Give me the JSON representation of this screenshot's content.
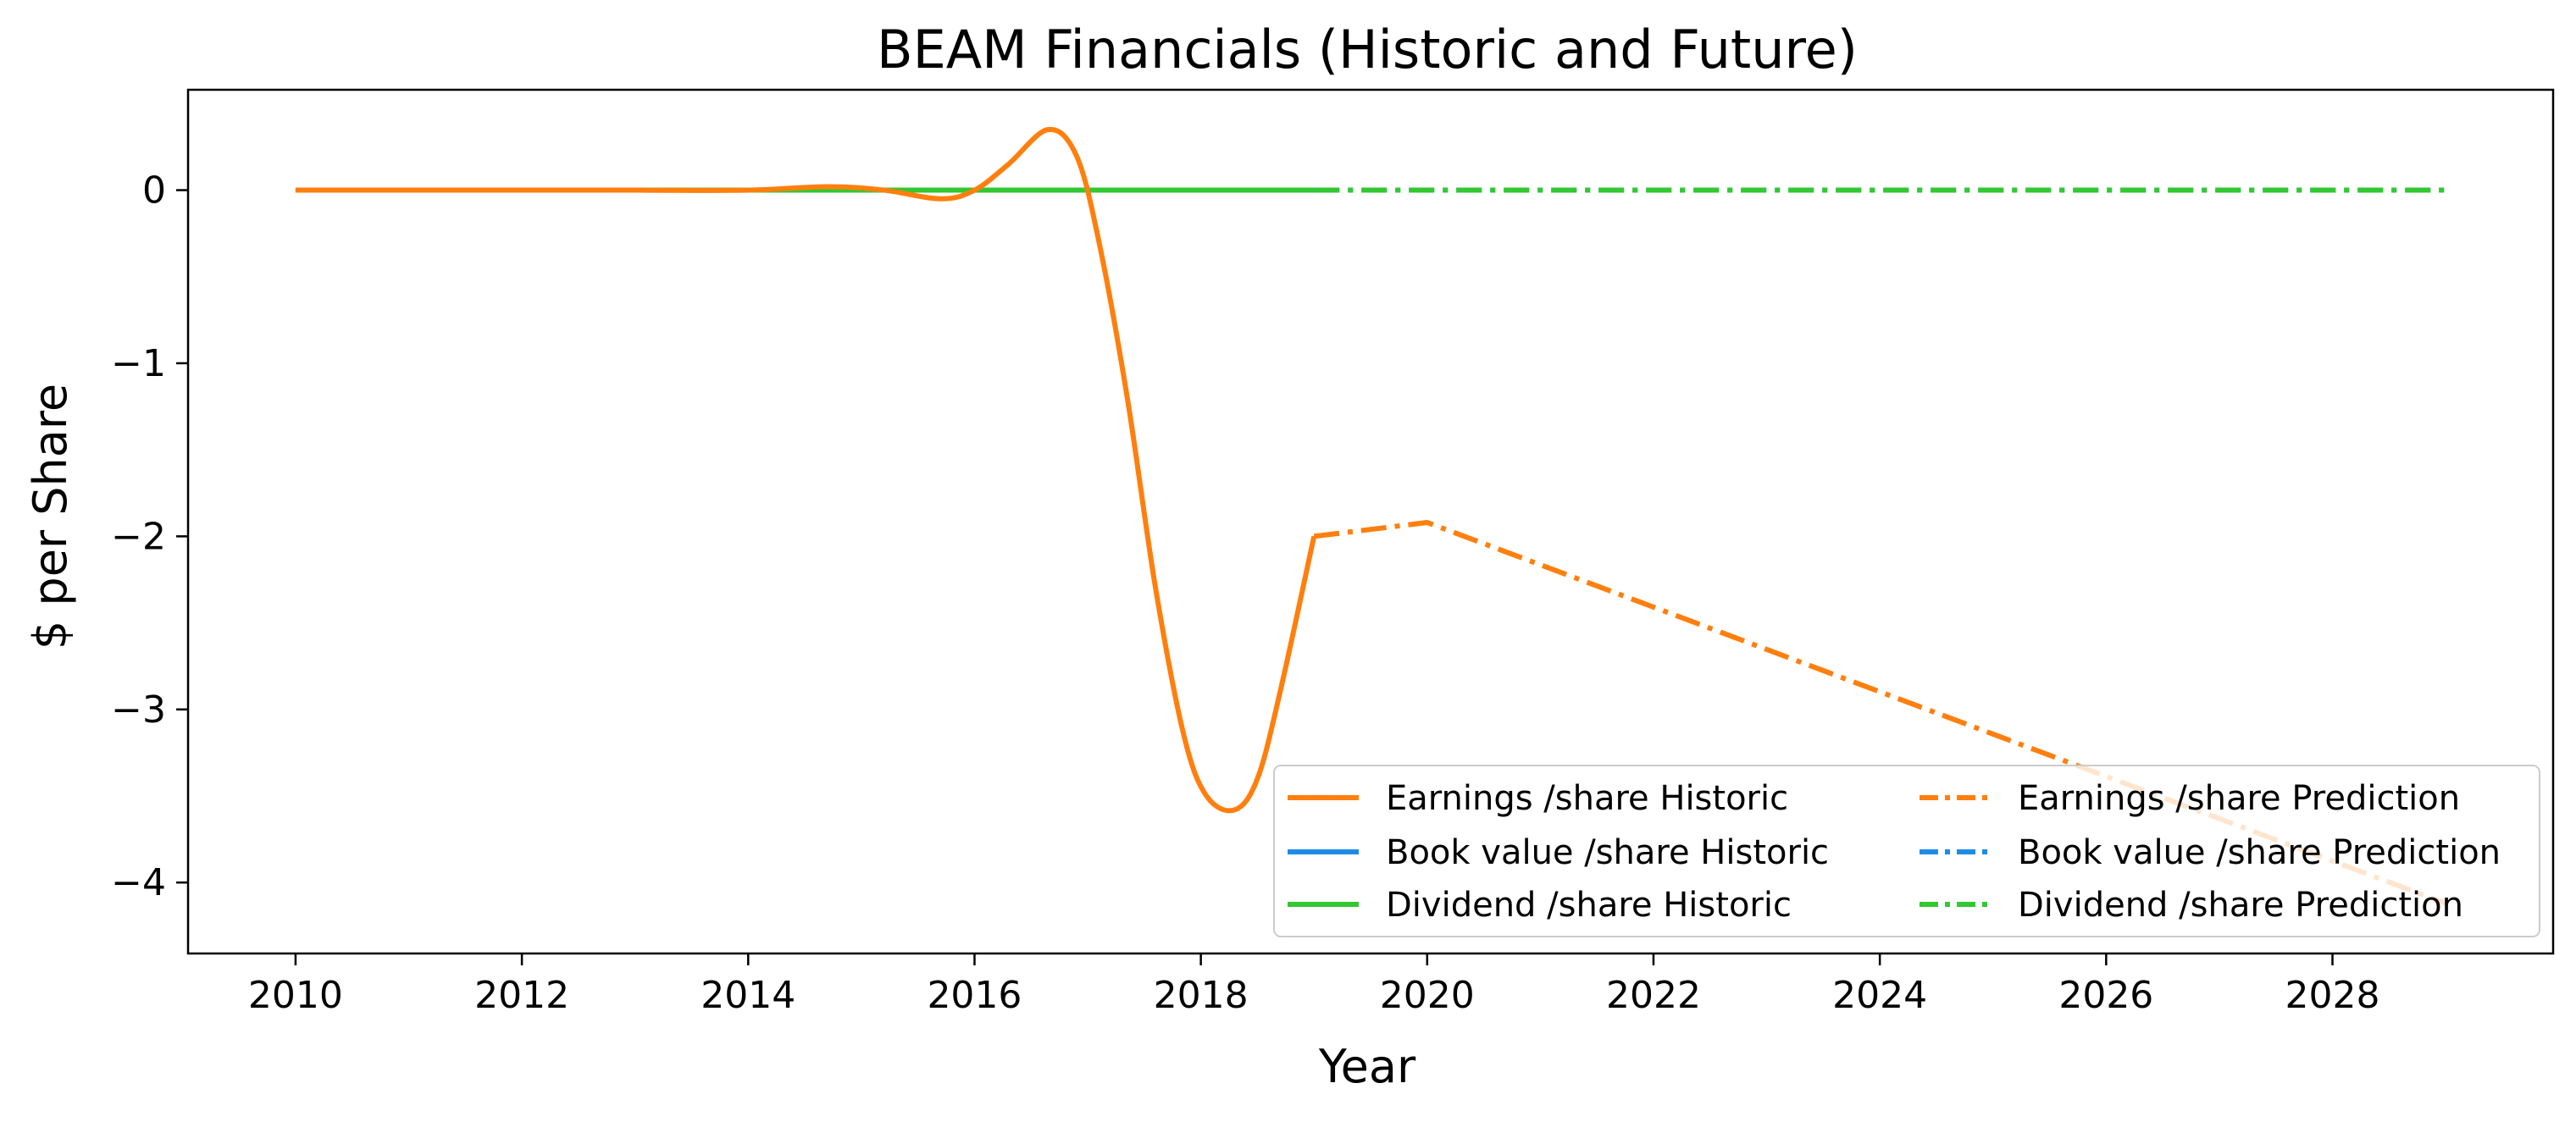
{
  "chart_data": {
    "type": "line",
    "title": "BEAM Financials (Historic and Future)",
    "xlabel": "Year",
    "ylabel": "$ per Share",
    "xlim": [
      2009.05,
      2029.95
    ],
    "ylim": [
      -4.41,
      0.58
    ],
    "x_ticks": [
      2010,
      2012,
      2014,
      2016,
      2018,
      2020,
      2022,
      2024,
      2026,
      2028
    ],
    "y_ticks": [
      0,
      -1,
      -2,
      -3,
      -4
    ],
    "x_tick_labels": [
      "2010",
      "2012",
      "2014",
      "2016",
      "2018",
      "2020",
      "2022",
      "2024",
      "2026",
      "2028"
    ],
    "y_tick_labels": [
      "0",
      "−1",
      "−2",
      "−3",
      "−4"
    ],
    "grid": false,
    "legend_position": "lower-right",
    "series": [
      {
        "name": "Earnings /share Historic",
        "color": "#ff7f0e",
        "style": "solid",
        "x": [
          2010,
          2011,
          2012,
          2013,
          2014,
          2014.7,
          2015.2,
          2015.7,
          2016.0,
          2016.3,
          2016.65,
          2016.9,
          2017.1,
          2017.35,
          2017.6,
          2017.85,
          2018.05,
          2018.3,
          2018.5,
          2018.7,
          2019.0
        ],
        "y": [
          0.0,
          0.0,
          0.0,
          0.0,
          0.0,
          0.02,
          0.0,
          -0.05,
          0.0,
          0.15,
          0.35,
          0.2,
          -0.3,
          -1.2,
          -2.3,
          -3.15,
          -3.5,
          -3.58,
          -3.4,
          -2.9,
          -2.0
        ]
      },
      {
        "name": "Book value /share Historic",
        "color": "#1e8ce6",
        "style": "solid",
        "x": [
          2010,
          2019
        ],
        "y": [
          0.0,
          0.0
        ]
      },
      {
        "name": "Dividend /share Historic",
        "color": "#32c832",
        "style": "solid",
        "x": [
          2010,
          2019
        ],
        "y": [
          0.0,
          0.0
        ]
      },
      {
        "name": "Earnings /share Prediction",
        "color": "#ff7f0e",
        "style": "dashdot",
        "x": [
          2019,
          2020,
          2029
        ],
        "y": [
          -2.0,
          -1.92,
          -4.12
        ]
      },
      {
        "name": "Book value /share Prediction",
        "color": "#1e8ce6",
        "style": "dashdot",
        "x": [
          2019,
          2029
        ],
        "y": [
          0.0,
          0.0
        ]
      },
      {
        "name": "Dividend /share Prediction",
        "color": "#32c832",
        "style": "dashdot",
        "x": [
          2019,
          2029
        ],
        "y": [
          0.0,
          0.0
        ]
      }
    ],
    "draw_order": [
      1,
      4,
      2,
      5,
      0,
      3
    ]
  }
}
